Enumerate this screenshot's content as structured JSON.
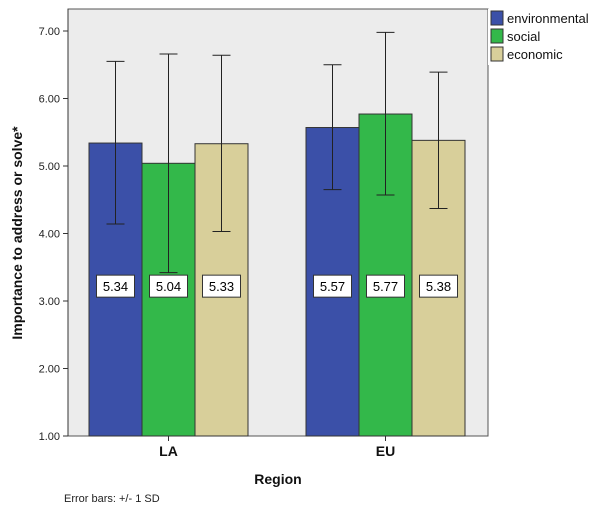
{
  "chart_data": {
    "type": "bar",
    "xlabel": "Region",
    "ylabel": "Importance to address or solve*",
    "categories": [
      "LA",
      "EU"
    ],
    "ylim": [
      1.0,
      7.0
    ],
    "yticks": [
      "1.00",
      "2.00",
      "3.00",
      "4.00",
      "5.00",
      "6.00",
      "7.00"
    ],
    "series": [
      {
        "name": "environmental",
        "color": "#3b50a8",
        "values": [
          5.34,
          5.57
        ],
        "err_low": [
          4.14,
          4.65
        ],
        "err_high": [
          6.55,
          6.5
        ]
      },
      {
        "name": "social",
        "color": "#33b84a",
        "values": [
          5.04,
          5.77
        ],
        "err_low": [
          3.42,
          4.57
        ],
        "err_high": [
          6.66,
          6.98
        ]
      },
      {
        "name": "economic",
        "color": "#d8cf9a",
        "values": [
          5.33,
          5.38
        ],
        "err_low": [
          4.03,
          4.37
        ],
        "err_high": [
          6.64,
          6.39
        ]
      }
    ],
    "data_labels": [
      [
        "5.34",
        "5.57"
      ],
      [
        "5.04",
        "5.77"
      ],
      [
        "5.33",
        "5.38"
      ]
    ],
    "grid": false,
    "legend_position": "top-right",
    "footnote": "Error bars: +/- 1 SD"
  }
}
